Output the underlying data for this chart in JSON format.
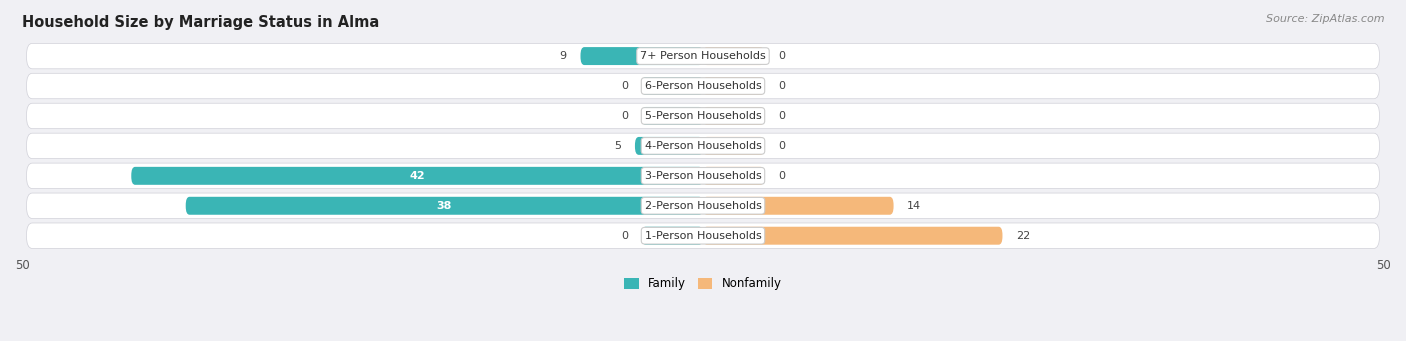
{
  "title": "Household Size by Marriage Status in Alma",
  "source": "Source: ZipAtlas.com",
  "categories": [
    "7+ Person Households",
    "6-Person Households",
    "5-Person Households",
    "4-Person Households",
    "3-Person Households",
    "2-Person Households",
    "1-Person Households"
  ],
  "family_values": [
    9,
    0,
    0,
    5,
    42,
    38,
    0
  ],
  "nonfamily_values": [
    0,
    0,
    0,
    0,
    0,
    14,
    22
  ],
  "family_color": "#3ab5b5",
  "nonfamily_color": "#f5b87a",
  "row_bg_color": "#e8e8ec",
  "row_bg_light": "#f0f0f4",
  "xlim_left": -50,
  "xlim_right": 50,
  "min_bar_width": 4.5,
  "title_fontsize": 10.5,
  "source_fontsize": 8,
  "label_fontsize": 8,
  "tick_fontsize": 8.5,
  "value_label_color": "#444444",
  "value_label_color_white": "#ffffff"
}
